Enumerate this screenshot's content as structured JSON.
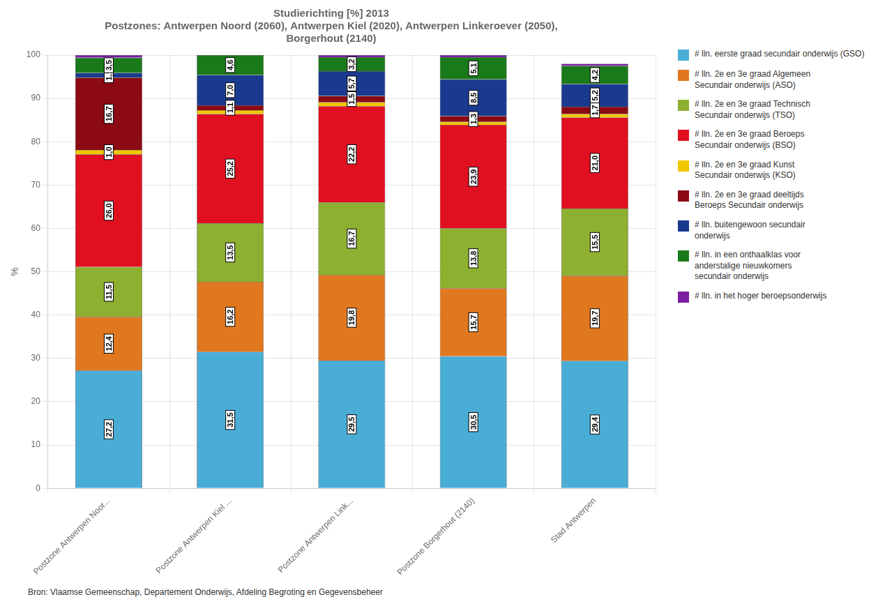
{
  "chart_data": {
    "type": "bar",
    "title": "Studierichting [%] 2013",
    "subtitle": "Postzones: Antwerpen Noord (2060), Antwerpen Kiel (2020), Antwerpen Linkeroever (2050),\nBorgerhout (2140)",
    "source": "Bron: Vlaamse Gemeenschap, Departement Onderwijs, Afdeling Begroting en Gegevensbeheer",
    "ylabel": "%",
    "categories": [
      "Postzone Antwerpen Noor...",
      "Postzone Antwerpen Kiel ...",
      "Postzone Antwerpen Link...",
      "Postzone Borgerhout (2140)",
      "Stad Antwerpen"
    ],
    "series": [
      {
        "name": "# lln. eerste graad secundair onderwijs (GSO)",
        "color": "#4AADD6",
        "values": [
          27.2,
          31.5,
          29.5,
          30.5,
          29.4
        ],
        "value_labels": [
          "27,2",
          "31,5",
          "29,5",
          "30,5",
          "29,4"
        ]
      },
      {
        "name": "# lln. 2e en 3e graad Algemeen\nSecundair onderwijs (ASO)",
        "color": "#E07820",
        "values": [
          12.4,
          16.2,
          19.8,
          15.7,
          19.7
        ],
        "value_labels": [
          "12,4",
          "16,2",
          "19,8",
          "15,7",
          "19,7"
        ]
      },
      {
        "name": "# lln. 2e en 3e graad Technisch\nSecundair onderwijs (TSO)",
        "color": "#8DB030",
        "values": [
          11.5,
          13.5,
          16.7,
          13.8,
          15.5
        ],
        "value_labels": [
          "11,5",
          "13,5",
          "16,7",
          "13,8",
          "15,5"
        ]
      },
      {
        "name": "# lln. 2e en 3e graad Beroeps\nSecundair onderwijs (BSO)",
        "color": "#E01020",
        "values": [
          26.0,
          25.2,
          22.2,
          23.9,
          21.0
        ],
        "value_labels": [
          "26,0",
          "25,2",
          "22,2",
          "23,9",
          "21,0"
        ]
      },
      {
        "name": "# lln. 2e en 3e graad Kunst\nSecundair onderwijs (KSO)",
        "color": "#F0C800",
        "values": [
          1.0,
          0.9,
          0.9,
          0.7,
          0.8
        ],
        "value_labels": [
          "1,0",
          null,
          null,
          null,
          null
        ]
      },
      {
        "name": "# lln. 2e en 3e graad deeltijds\nBeroeps Secundair onderwijs",
        "color": "#8B0A14",
        "values": [
          16.7,
          1.1,
          1.5,
          1.3,
          1.7
        ],
        "value_labels": [
          "16,7",
          "1,1",
          "1,5",
          "1,3",
          "1,7"
        ]
      },
      {
        "name": "# lln. buitengewoon secundair\nonderwijs",
        "color": "#1A3A90",
        "values": [
          1.1,
          7.0,
          5.7,
          8.5,
          5.2
        ],
        "value_labels": [
          "1,1",
          "7,0",
          "5,7",
          "8,5",
          "5,2"
        ]
      },
      {
        "name": "# lln. in een onthaalklas voor\nanderstalige nieuwkomers\nsecundair onderwijs",
        "color": "#1A7A1A",
        "values": [
          3.5,
          4.6,
          3.2,
          5.1,
          4.2
        ],
        "value_labels": [
          "3,5",
          "4,6",
          "3,2",
          "5,1",
          "4,2"
        ]
      },
      {
        "name": "# lln. in het hoger beroepsonderwijs",
        "color": "#7B1FA2",
        "values": [
          0.6,
          0.0,
          0.5,
          0.5,
          0.5
        ],
        "value_labels": [
          null,
          null,
          null,
          null,
          null
        ]
      }
    ],
    "ylim": [
      0,
      100
    ],
    "yticks": [
      0,
      10,
      20,
      30,
      40,
      50,
      60,
      70,
      80,
      90,
      100
    ],
    "stacked": true,
    "grid": true,
    "legend": "right",
    "data_labels": true
  }
}
